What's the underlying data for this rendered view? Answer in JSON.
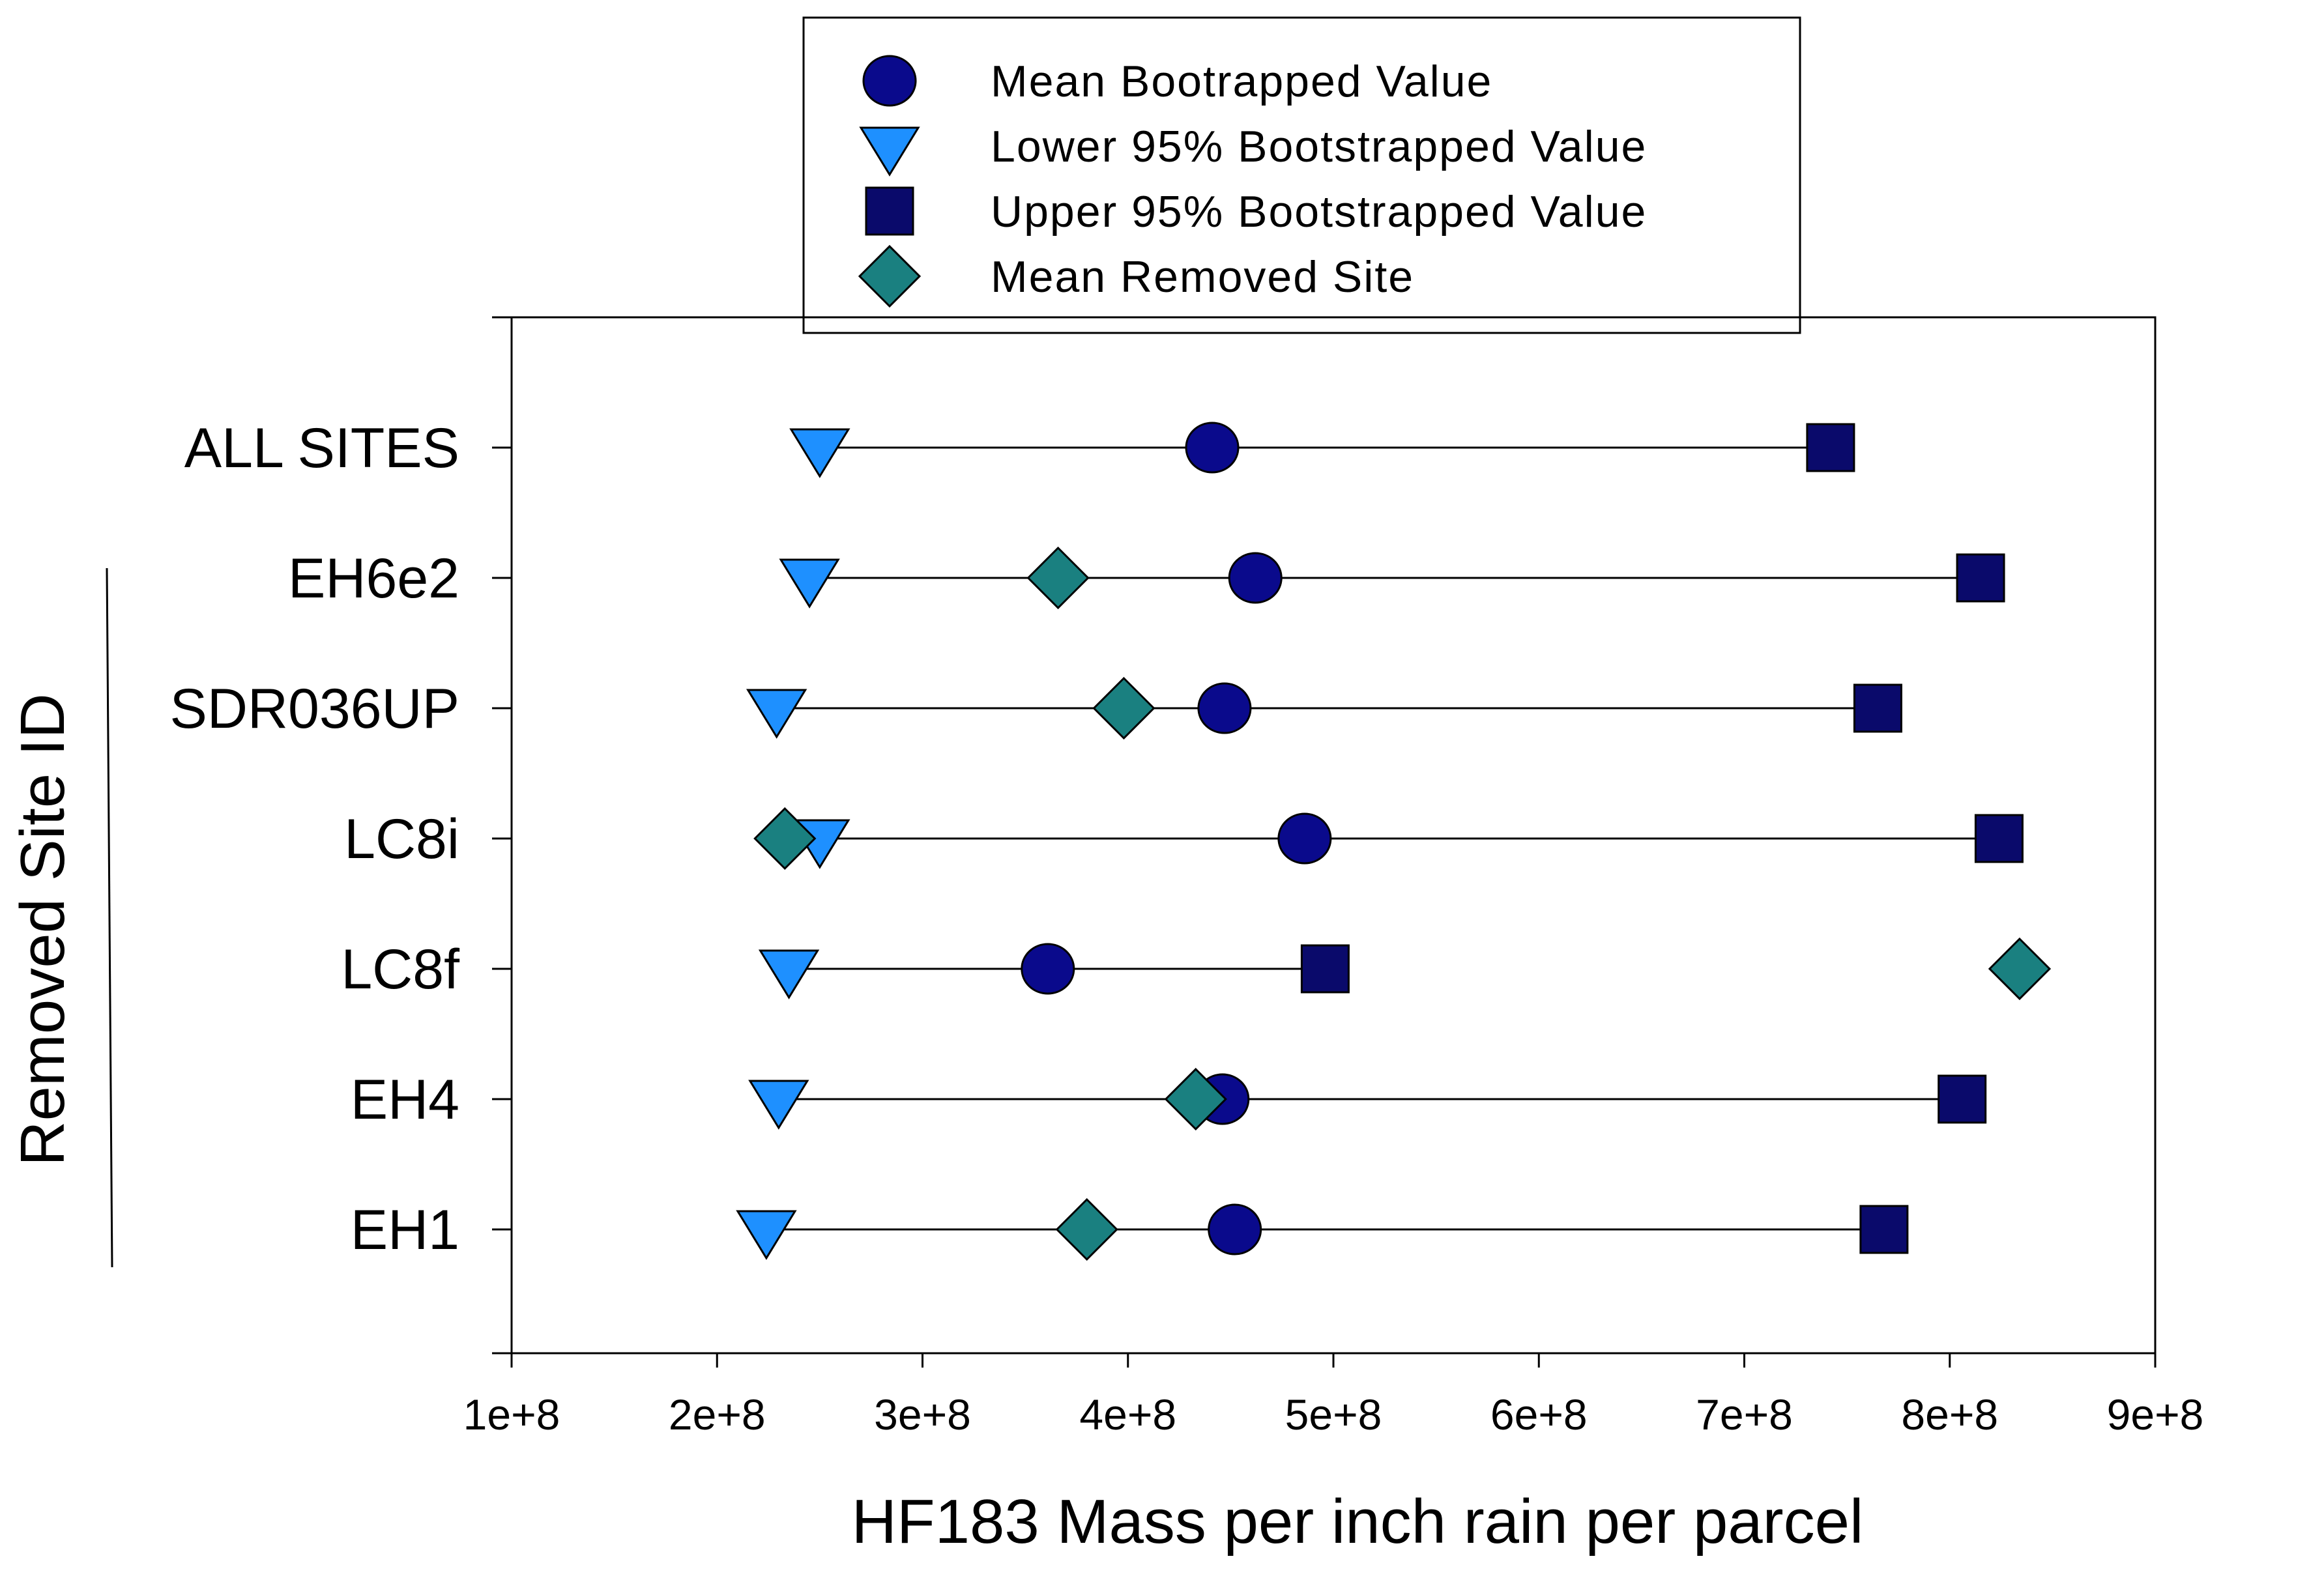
{
  "chart_data": {
    "type": "scatter",
    "orientation": "horizontal-dot-plot",
    "xlabel": "HF183 Mass per inch rain per parcel",
    "ylabel": "Removed Site ID",
    "xlim": [
      100000000,
      900000000
    ],
    "x_ticks": [
      100000000,
      200000000,
      300000000,
      400000000,
      500000000,
      600000000,
      700000000,
      800000000,
      900000000
    ],
    "x_tick_labels": [
      "1e+8",
      "2e+8",
      "3e+8",
      "4e+8",
      "5e+8",
      "6e+8",
      "7e+8",
      "8e+8",
      "9e+8"
    ],
    "categories": [
      "ALL SITES",
      "EH6e2",
      "SDR036UP",
      "LC8i",
      "LC8f",
      "EH4",
      "EH1"
    ],
    "grouped_categories": [
      "EH6e2",
      "SDR036UP",
      "LC8i",
      "LC8f",
      "EH4",
      "EH1"
    ],
    "series": [
      {
        "name": "Mean Bootrapped Value",
        "marker": "circle",
        "color": "#0a0a8c",
        "values": [
          441000000,
          462000000,
          447000000,
          486000000,
          361000000,
          446000000,
          452000000
        ]
      },
      {
        "name": "Lower 95% Bootstrapped Value",
        "marker": "triangle-down",
        "color": "#1e90ff",
        "values": [
          250000000,
          245000000,
          229000000,
          250000000,
          235000000,
          230000000,
          224000000
        ]
      },
      {
        "name": "Upper 95% Bootstrapped Value",
        "marker": "square",
        "color": "#0a0a6b",
        "values": [
          742000000,
          815000000,
          765000000,
          824000000,
          496000000,
          806000000,
          768000000
        ]
      },
      {
        "name": "Mean Removed Site",
        "marker": "diamond",
        "color": "#1a8080",
        "values": [
          null,
          366000000,
          398000000,
          233000000,
          834000000,
          433000000,
          380000000
        ]
      }
    ],
    "range_lines": "lower-to-upper",
    "legend_position": "top",
    "grid": false
  }
}
